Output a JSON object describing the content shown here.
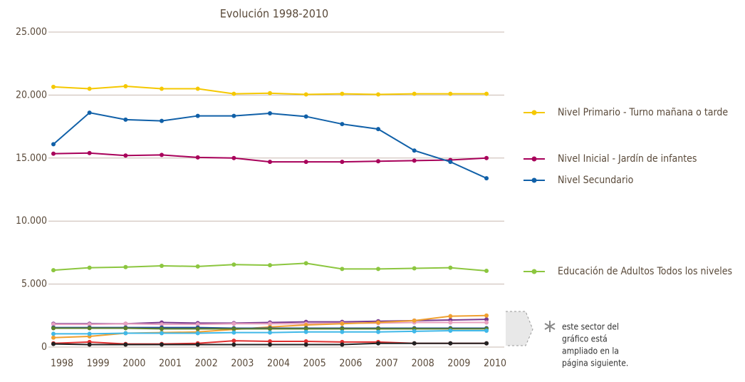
{
  "chart_data": {
    "type": "line",
    "title": "Evolución 1998-2010",
    "categories": [
      "1998",
      "1999",
      "2000",
      "2001",
      "2002",
      "2003",
      "2004",
      "2005",
      "2006",
      "2007",
      "2008",
      "2009",
      "2010"
    ],
    "ylim": [
      0,
      25000
    ],
    "yticks": [
      0,
      {
        "value": 5000,
        "label": "5.000"
      },
      {
        "value": 10000,
        "label": "10.000"
      },
      {
        "value": 15000,
        "label": "15.000"
      },
      {
        "value": 20000,
        "label": "20.000"
      },
      {
        "value": 25000,
        "label": "25.000"
      }
    ],
    "grid": true,
    "series": [
      {
        "name": "Nivel Primario - Turno mañana o tarde",
        "color": "#f5c800",
        "values": [
          20650,
          20500,
          20700,
          20500,
          20500,
          20100,
          20150,
          20050,
          20100,
          20050,
          20100,
          20100,
          20100
        ]
      },
      {
        "name": "Nivel Inicial - Jardín de infantes",
        "color": "#a8005a",
        "values": [
          15350,
          15400,
          15200,
          15250,
          15050,
          15000,
          14700,
          14700,
          14700,
          14750,
          14800,
          14850,
          15000
        ]
      },
      {
        "name": "Nivel Secundario",
        "color": "#1060a8",
        "values": [
          16100,
          18600,
          18050,
          17950,
          18350,
          18350,
          18550,
          18300,
          17700,
          17300,
          15600,
          14700,
          13400
        ]
      },
      {
        "name": "Educación de Adultos Todos los niveles",
        "color": "#8cc63f",
        "values": [
          6100,
          6300,
          6350,
          6450,
          6400,
          6550,
          6500,
          6650,
          6200,
          6200,
          6250,
          6300,
          6050
        ]
      },
      {
        "color": "#7a3b8f",
        "values": [
          1850,
          1850,
          1850,
          1950,
          1900,
          1900,
          1950,
          2000,
          2000,
          2050,
          2100,
          2150,
          2200
        ]
      },
      {
        "color": "#e8a0c0",
        "values": [
          1800,
          1800,
          1850,
          1800,
          1800,
          1850,
          1850,
          1850,
          1900,
          1900,
          1950,
          1950,
          1950
        ]
      },
      {
        "color": "#f0a030",
        "values": [
          750,
          850,
          1100,
          1150,
          1200,
          1400,
          1600,
          1750,
          1850,
          1950,
          2100,
          2450,
          2500
        ]
      },
      {
        "color": "#1f4e9a",
        "values": [
          1550,
          1550,
          1550,
          1550,
          1550,
          1500,
          1500,
          1500,
          1500,
          1500,
          1500,
          1500,
          1500
        ]
      },
      {
        "color": "#5b7f2a",
        "values": [
          1500,
          1500,
          1500,
          1450,
          1450,
          1450,
          1450,
          1450,
          1450,
          1450,
          1450,
          1450,
          1450
        ]
      },
      {
        "color": "#40b8e8",
        "values": [
          1050,
          1050,
          1100,
          1100,
          1100,
          1150,
          1150,
          1200,
          1200,
          1200,
          1250,
          1300,
          1300
        ]
      },
      {
        "color": "#e03030",
        "values": [
          300,
          400,
          250,
          250,
          300,
          500,
          450,
          450,
          400,
          400,
          300,
          300,
          300
        ]
      },
      {
        "color": "#222222",
        "values": [
          250,
          200,
          200,
          200,
          200,
          200,
          200,
          200,
          200,
          300,
          300,
          300,
          300
        ]
      }
    ],
    "annotation": [
      "este sector del",
      "gráfico está",
      "ampliado en la",
      "página siguiente."
    ]
  }
}
